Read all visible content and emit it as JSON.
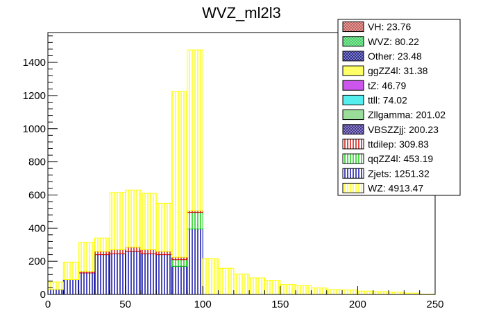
{
  "chart_data": {
    "type": "bar",
    "title": "WVZ_ml2l3",
    "xlabel": "",
    "ylabel": "",
    "xlim": [
      0,
      250
    ],
    "ylim": [
      0,
      1580
    ],
    "x_ticks": [
      0,
      50,
      100,
      150,
      200,
      250
    ],
    "y_ticks": [
      0,
      200,
      400,
      600,
      800,
      1000,
      1200,
      1400
    ],
    "bin_edges": [
      0,
      10,
      20,
      30,
      40,
      50,
      60,
      70,
      80,
      90,
      100,
      110,
      120,
      130,
      140,
      150,
      160,
      170,
      180,
      190,
      200,
      210,
      220,
      230,
      240,
      250
    ],
    "stacked": true,
    "legend_position": "top-right",
    "series": [
      {
        "name": "Zjets: 1251.32",
        "color": "#0000a0",
        "pattern": "vertical",
        "values": [
          30,
          90,
          130,
          240,
          245,
          260,
          245,
          240,
          170,
          395,
          0,
          0,
          0,
          0,
          0,
          0,
          0,
          0,
          0,
          0,
          0,
          0,
          0,
          0,
          0
        ]
      },
      {
        "name": "qqZZ4l: 453.19",
        "color": "#00cc00",
        "pattern": "vertical",
        "values": [
          0,
          0,
          0,
          0,
          0,
          0,
          0,
          0,
          40,
          100,
          0,
          0,
          0,
          0,
          0,
          0,
          0,
          0,
          0,
          0,
          0,
          0,
          0,
          0,
          0
        ]
      },
      {
        "name": "ttdilep: 309.83",
        "color": "#cc0000",
        "pattern": "vertical",
        "values": [
          0,
          0,
          10,
          20,
          25,
          25,
          25,
          20,
          15,
          10,
          0,
          0,
          0,
          0,
          0,
          0,
          0,
          0,
          0,
          0,
          0,
          0,
          0,
          0,
          0
        ]
      },
      {
        "name": "WZ: 4913.47",
        "color": "#ffff00",
        "pattern": "vertical",
        "values": [
          45,
          105,
          175,
          80,
          345,
          345,
          340,
          290,
          1000,
          970,
          215,
          158,
          123,
          100,
          85,
          60,
          53,
          39,
          29,
          27,
          20,
          17,
          14,
          8,
          2
        ]
      }
    ],
    "legend": [
      {
        "label": "VH: 23.76",
        "fill": "#c0504d",
        "pattern": "cross"
      },
      {
        "label": "WVZ: 80.22",
        "fill": "#33cc55",
        "pattern": "cross"
      },
      {
        "label": "Other: 23.48",
        "fill": "#1a1a8a",
        "pattern": "cross"
      },
      {
        "label": "ggZZ4l: 31.38",
        "fill": "#ffff66",
        "pattern": "solid"
      },
      {
        "label": "tZ: 46.79",
        "fill": "#cc55ee",
        "pattern": "solid"
      },
      {
        "label": "ttll: 74.02",
        "fill": "#55eeee",
        "pattern": "solid"
      },
      {
        "label": "Zllgamma: 201.02",
        "fill": "#99dd99",
        "pattern": "solid"
      },
      {
        "label": "VBSZZjj: 200.23",
        "fill": "#332288",
        "pattern": "cross"
      },
      {
        "label": "ttdilep: 309.83",
        "fill": "#cc0000",
        "pattern": "vertical"
      },
      {
        "label": "qqZZ4l: 453.19",
        "fill": "#00cc00",
        "pattern": "vertical"
      },
      {
        "label": "Zjets: 1251.32",
        "fill": "#0000a0",
        "pattern": "vertical"
      },
      {
        "label": "WZ: 4913.47",
        "fill": "#ffff00",
        "pattern": "vertical"
      }
    ]
  }
}
